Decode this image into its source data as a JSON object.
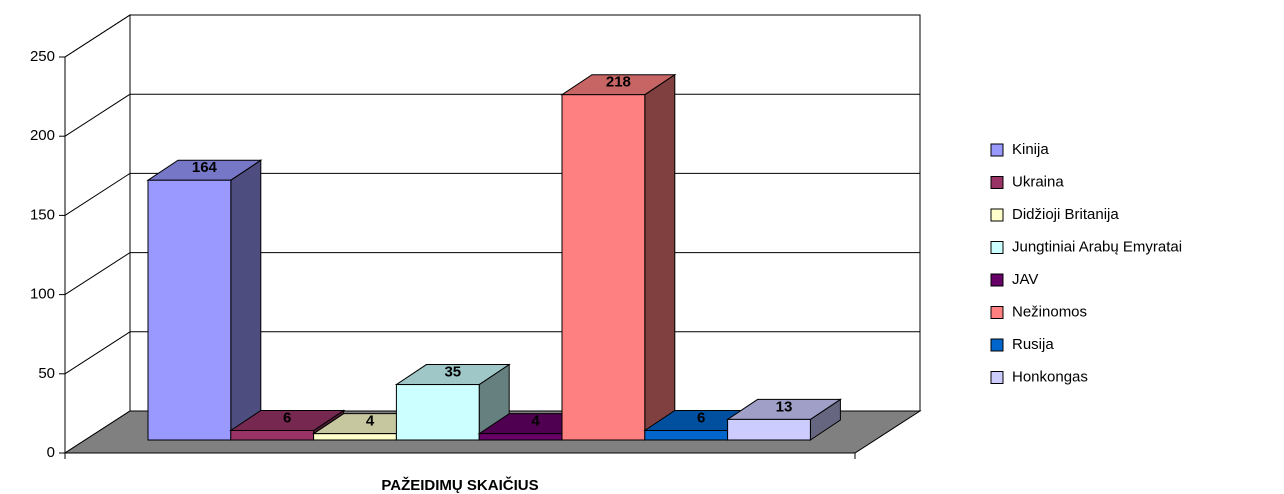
{
  "chart_data": {
    "type": "bar3d",
    "x_label": "PAŽEIDIMŲ SKAIČIUS",
    "series": [
      {
        "name": "Kinija",
        "color": "#9999ff",
        "values": [
          164
        ]
      },
      {
        "name": "Ukraina",
        "color": "#993366",
        "values": [
          6
        ]
      },
      {
        "name": "Didžioji Britanija",
        "color": "#ffffcc",
        "values": [
          4
        ]
      },
      {
        "name": "Jungtiniai Arabų Emyratai",
        "color": "#ccffff",
        "values": [
          35
        ]
      },
      {
        "name": "JAV",
        "color": "#660066",
        "values": [
          4
        ]
      },
      {
        "name": "Nežinomos",
        "color": "#ff8080",
        "values": [
          218
        ]
      },
      {
        "name": "Rusija",
        "color": "#0066cc",
        "values": [
          6
        ]
      },
      {
        "name": "Honkongas",
        "color": "#ccccff",
        "values": [
          13
        ]
      }
    ],
    "ylim": [
      0,
      250
    ],
    "yticks": [
      0,
      50,
      100,
      150,
      200,
      250
    ],
    "grid": true,
    "legend": "right"
  }
}
